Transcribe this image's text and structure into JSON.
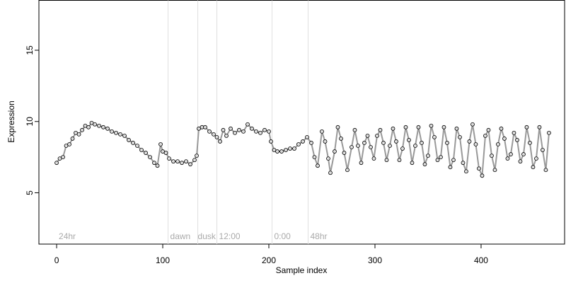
{
  "chart_data": {
    "type": "scatter",
    "x_label": "Sample index",
    "y_label": "Expression",
    "xlim": [
      -16.7,
      478.7
    ],
    "ylim": [
      1.4,
      18.5
    ],
    "xticks": [
      0,
      100,
      200,
      300,
      400
    ],
    "yticks": [
      5,
      10,
      15
    ],
    "vlines": [
      105,
      133,
      151,
      203,
      237
    ],
    "annotations": [
      {
        "text": "24hr",
        "x": 2
      },
      {
        "text": "dawn",
        "x": 107
      },
      {
        "text": "dusk",
        "x": 133
      },
      {
        "text": "12:00",
        "x": 153
      },
      {
        "text": "0:00",
        "x": 205
      },
      {
        "text": "48hr",
        "x": 239
      }
    ],
    "series": [
      {
        "color": "#999999",
        "x": [
          0,
          3,
          6,
          9,
          12,
          15,
          18,
          21,
          24,
          27,
          30,
          33,
          36,
          40,
          44,
          48,
          52,
          56,
          60,
          64,
          68,
          72,
          76,
          80,
          84,
          88,
          92,
          95,
          98,
          100,
          103,
          106,
          110,
          114,
          118,
          122,
          126,
          130,
          132,
          134,
          137,
          140,
          144,
          148,
          151,
          154,
          157,
          160,
          164,
          168,
          172,
          176,
          180,
          184,
          188,
          192,
          196,
          200,
          202,
          205,
          208,
          212,
          216,
          220,
          224,
          228,
          232,
          236,
          240,
          243,
          246,
          250,
          253,
          256,
          258,
          262,
          265,
          268,
          271,
          274,
          278,
          281,
          284,
          287,
          290,
          293,
          296,
          299,
          302,
          305,
          308,
          311,
          314,
          317,
          320,
          323,
          326,
          329,
          332,
          335,
          338,
          341,
          344,
          347,
          350,
          353,
          356,
          359,
          362,
          365,
          368,
          371,
          374,
          377,
          380,
          383,
          386,
          389,
          392,
          395,
          398,
          401,
          404,
          407,
          410,
          413,
          416,
          419,
          422,
          425,
          428,
          431,
          434,
          437,
          440,
          443,
          446,
          449,
          452,
          455,
          458,
          461,
          464
        ],
        "values": [
          7.1,
          7.4,
          7.5,
          8.3,
          8.4,
          8.8,
          9.2,
          9.1,
          9.4,
          9.7,
          9.6,
          9.9,
          9.8,
          9.7,
          9.6,
          9.5,
          9.3,
          9.2,
          9.1,
          9.0,
          8.7,
          8.5,
          8.3,
          8.0,
          7.8,
          7.5,
          7.1,
          6.9,
          8.4,
          7.9,
          7.8,
          7.4,
          7.2,
          7.2,
          7.1,
          7.2,
          7.0,
          7.3,
          7.6,
          9.5,
          9.6,
          9.6,
          9.3,
          9.1,
          8.9,
          8.6,
          9.4,
          9.0,
          9.5,
          9.2,
          9.4,
          9.3,
          9.8,
          9.5,
          9.3,
          9.2,
          9.4,
          9.3,
          8.6,
          8.0,
          7.9,
          7.9,
          8.0,
          8.1,
          8.1,
          8.4,
          8.6,
          8.9,
          8.5,
          7.5,
          6.9,
          9.3,
          8.6,
          7.4,
          6.4,
          7.9,
          9.6,
          8.8,
          7.8,
          6.6,
          8.2,
          9.4,
          8.3,
          7.1,
          8.5,
          9.0,
          8.2,
          7.4,
          9.0,
          9.4,
          8.5,
          7.3,
          8.3,
          9.5,
          8.6,
          7.3,
          8.1,
          9.6,
          8.7,
          7.1,
          8.3,
          9.6,
          8.5,
          7.0,
          7.6,
          9.7,
          8.9,
          7.3,
          7.5,
          9.6,
          8.5,
          6.8,
          7.3,
          9.5,
          8.9,
          7.1,
          6.5,
          8.6,
          9.8,
          8.4,
          6.7,
          6.2,
          9.0,
          9.4,
          7.6,
          6.6,
          8.4,
          9.5,
          8.8,
          7.4,
          7.7,
          9.2,
          8.7,
          7.2,
          7.7,
          9.6,
          8.5,
          6.8,
          7.4,
          9.6,
          8.0,
          6.6,
          9.2
        ]
      }
    ]
  }
}
